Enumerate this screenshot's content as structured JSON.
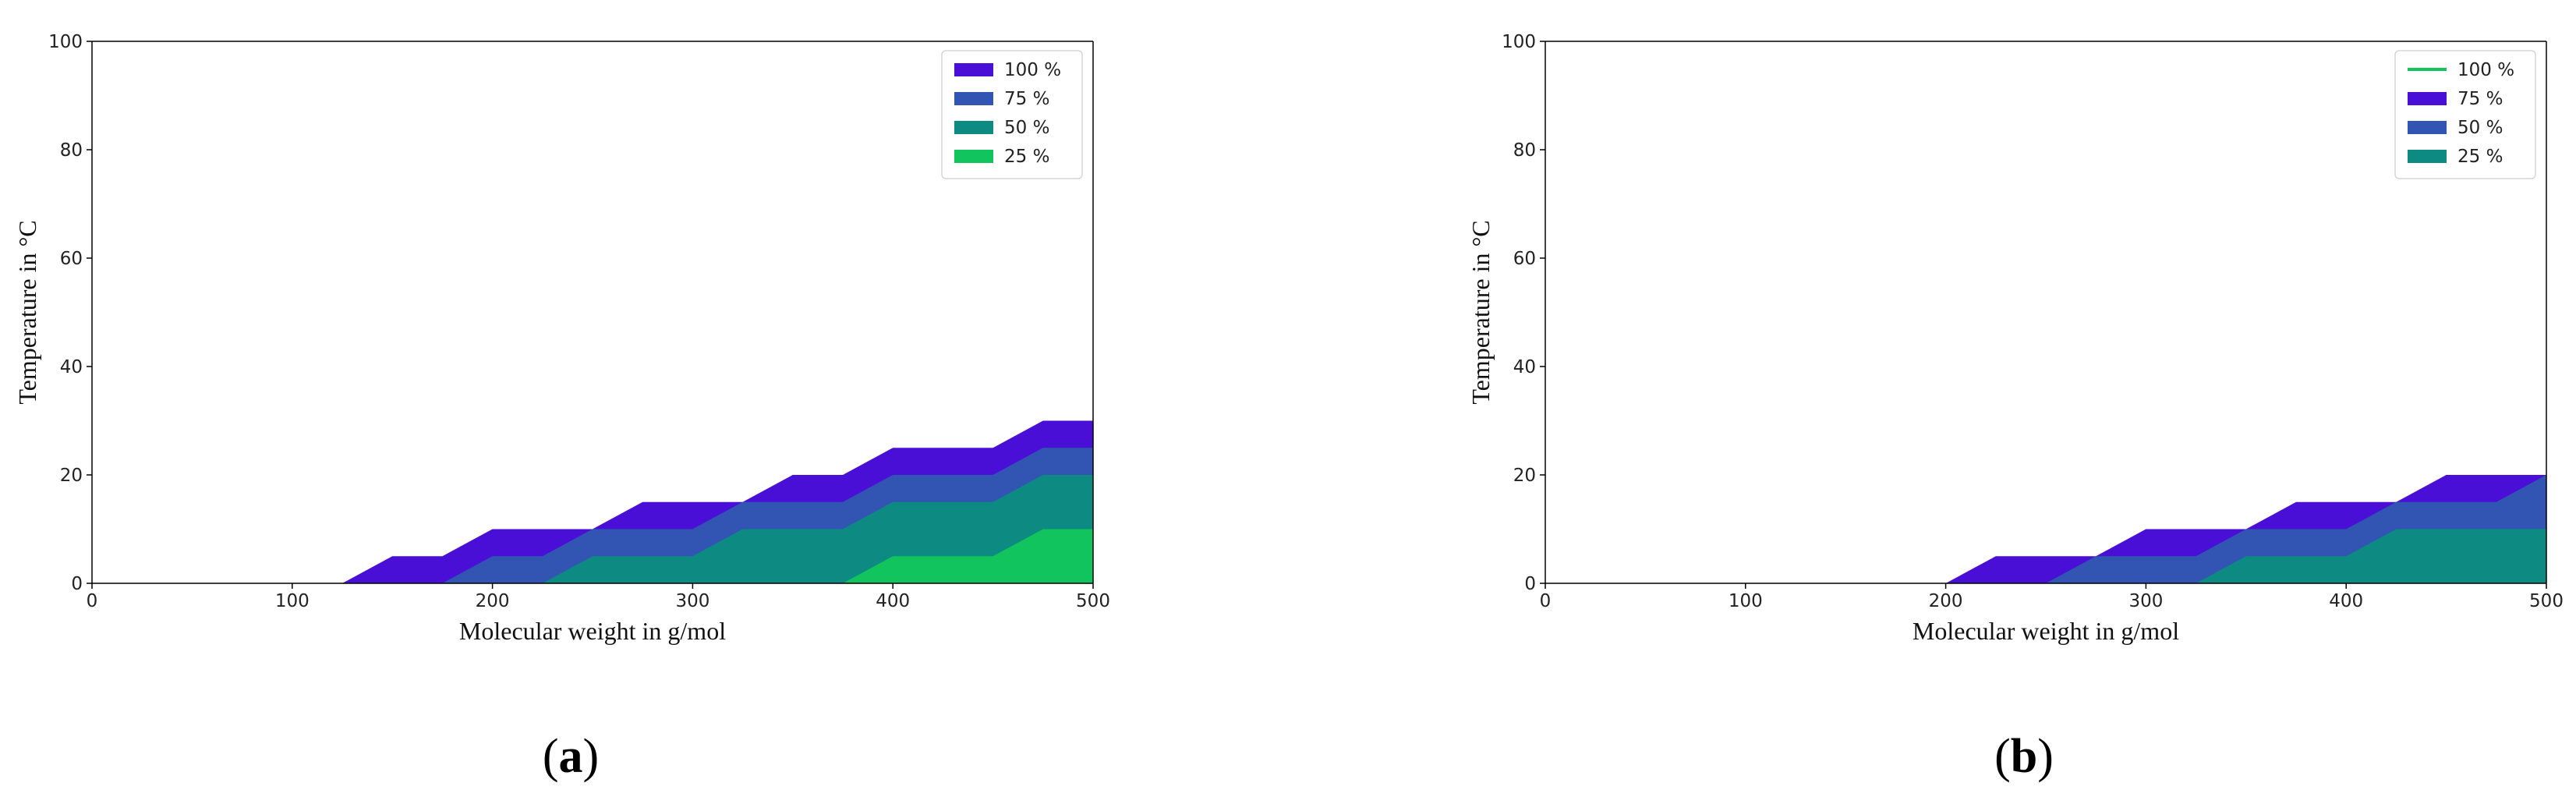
{
  "chart_data": [
    {
      "type": "area",
      "panel_label": "a",
      "xlabel": "Molecular weight in g/mol",
      "ylabel": "Temperature in °C",
      "xlim": [
        0,
        500
      ],
      "ylim": [
        0,
        100
      ],
      "xticks": [
        "0",
        "100",
        "200",
        "300",
        "400",
        "500"
      ],
      "yticks": [
        "0",
        "20",
        "40",
        "60",
        "80",
        "100"
      ],
      "grid": false,
      "legend_position": "top-right",
      "x": [
        0,
        25,
        50,
        75,
        100,
        125,
        150,
        175,
        200,
        225,
        250,
        275,
        300,
        325,
        350,
        375,
        400,
        425,
        450,
        475,
        500
      ],
      "series": [
        {
          "name": "100 %",
          "color": "#4a0fd6",
          "values": [
            0,
            0,
            0,
            0,
            0,
            0,
            5,
            5,
            10,
            10,
            10,
            15,
            15,
            15,
            20,
            20,
            25,
            25,
            25,
            30,
            30
          ]
        },
        {
          "name": "75 %",
          "color": "#3255b4",
          "values": [
            0,
            0,
            0,
            0,
            0,
            0,
            0,
            0,
            5,
            5,
            10,
            10,
            10,
            15,
            15,
            15,
            20,
            20,
            20,
            25,
            25
          ]
        },
        {
          "name": "50 %",
          "color": "#0d8a82",
          "values": [
            0,
            0,
            0,
            0,
            0,
            0,
            0,
            0,
            0,
            0,
            5,
            5,
            5,
            10,
            10,
            10,
            15,
            15,
            15,
            20,
            20
          ]
        },
        {
          "name": "25 %",
          "color": "#11c45e",
          "values": [
            0,
            0,
            0,
            0,
            0,
            0,
            0,
            0,
            0,
            0,
            0,
            0,
            0,
            0,
            0,
            0,
            5,
            5,
            5,
            10,
            10
          ]
        }
      ]
    },
    {
      "type": "area",
      "panel_label": "b",
      "xlabel": "Molecular weight in g/mol",
      "ylabel": "Temperature in °C",
      "xlim": [
        0,
        500
      ],
      "ylim": [
        0,
        100
      ],
      "xticks": [
        "0",
        "100",
        "200",
        "300",
        "400",
        "500"
      ],
      "yticks": [
        "0",
        "20",
        "40",
        "60",
        "80",
        "100"
      ],
      "grid": false,
      "legend_position": "top-right",
      "x": [
        0,
        25,
        50,
        75,
        100,
        125,
        150,
        175,
        200,
        225,
        250,
        275,
        300,
        325,
        350,
        375,
        400,
        425,
        450,
        475,
        500
      ],
      "series": [
        {
          "name": "100 %",
          "color": "#11c45e",
          "legend_marker": "line",
          "values": [
            0,
            0,
            0,
            0,
            0,
            0,
            0,
            0,
            0,
            0,
            0,
            0,
            0,
            0,
            0,
            0,
            0,
            0,
            0,
            0,
            0
          ]
        },
        {
          "name": "75 %",
          "color": "#4a0fd6",
          "values": [
            0,
            0,
            0,
            0,
            0,
            0,
            0,
            0,
            0,
            5,
            5,
            5,
            10,
            10,
            10,
            15,
            15,
            15,
            20,
            20,
            20
          ]
        },
        {
          "name": "50 %",
          "color": "#3255b4",
          "values": [
            0,
            0,
            0,
            0,
            0,
            0,
            0,
            0,
            0,
            0,
            0,
            5,
            5,
            5,
            10,
            10,
            10,
            15,
            15,
            15,
            20
          ]
        },
        {
          "name": "25 %",
          "color": "#0d8a82",
          "values": [
            0,
            0,
            0,
            0,
            0,
            0,
            0,
            0,
            0,
            0,
            0,
            0,
            0,
            0,
            5,
            5,
            5,
            10,
            10,
            10,
            10
          ]
        }
      ]
    }
  ]
}
